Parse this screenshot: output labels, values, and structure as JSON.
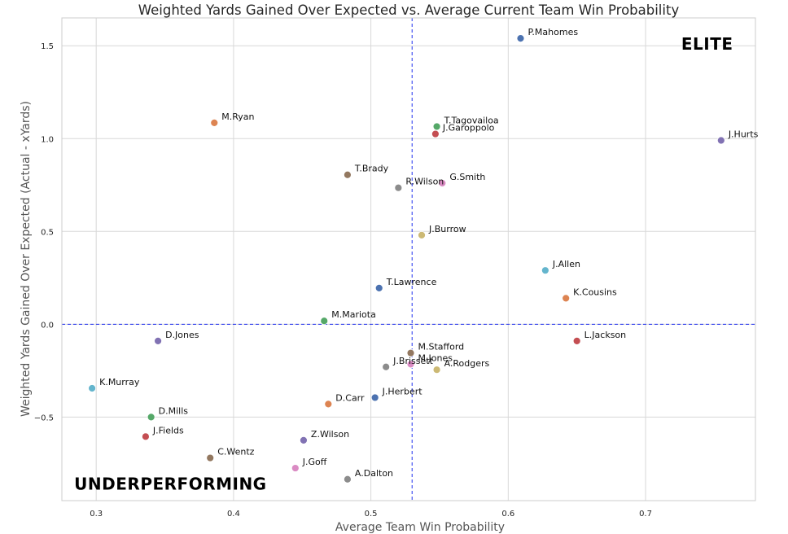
{
  "chart_data": {
    "type": "scatter",
    "title": "Weighted Yards Gained Over Expected vs. Average Current Team Win Probability",
    "xlabel": "Average Team Win Probability",
    "ylabel": "Weighted Yards Gained Over Expected (Actual - xYards)",
    "xlim": [
      0.275,
      0.78
    ],
    "ylim": [
      -0.95,
      1.65
    ],
    "xticks": [
      0.3,
      0.4,
      0.5,
      0.6,
      0.7
    ],
    "xtick_labels": [
      "0.3",
      "0.4",
      "0.5",
      "0.6",
      "0.7"
    ],
    "yticks": [
      -0.5,
      0.0,
      0.5,
      1.0,
      1.5
    ],
    "ytick_labels": [
      "−0.5",
      "0.0",
      "0.5",
      "1.0",
      "1.5"
    ],
    "grid": true,
    "reference_lines": {
      "vertical_x": 0.53,
      "horizontal_y": 0.0
    },
    "annotations": [
      {
        "text": "ELITE",
        "x": 0.726,
        "y": 1.48
      },
      {
        "text": "UNDERPERFORMING",
        "x": 0.284,
        "y": -0.89
      }
    ],
    "points": [
      {
        "label": "P.Mahomes",
        "x": 0.609,
        "y": 1.54,
        "color": "#4c72b0"
      },
      {
        "label": "J.Hurts",
        "x": 0.755,
        "y": 0.99,
        "color": "#8172b3"
      },
      {
        "label": "M.Ryan",
        "x": 0.386,
        "y": 1.085,
        "color": "#dd8452"
      },
      {
        "label": "T.Tagovailoa",
        "x": 0.548,
        "y": 1.065,
        "color": "#55a868"
      },
      {
        "label": "J.Garoppolo",
        "x": 0.547,
        "y": 1.025,
        "color": "#c44e52"
      },
      {
        "label": "T.Brady",
        "x": 0.483,
        "y": 0.805,
        "color": "#937860"
      },
      {
        "label": "G.Smith",
        "x": 0.552,
        "y": 0.76,
        "color": "#da8bc3"
      },
      {
        "label": "R.Wilson",
        "x": 0.52,
        "y": 0.735,
        "color": "#8c8c8c"
      },
      {
        "label": "J.Burrow",
        "x": 0.537,
        "y": 0.48,
        "color": "#ccb974"
      },
      {
        "label": "J.Allen",
        "x": 0.627,
        "y": 0.29,
        "color": "#64b5cd"
      },
      {
        "label": "T.Lawrence",
        "x": 0.506,
        "y": 0.195,
        "color": "#4c72b0"
      },
      {
        "label": "K.Cousins",
        "x": 0.642,
        "y": 0.14,
        "color": "#dd8452"
      },
      {
        "label": "M.Mariota",
        "x": 0.466,
        "y": 0.018,
        "color": "#55a868"
      },
      {
        "label": "D.Jones",
        "x": 0.345,
        "y": -0.09,
        "color": "#8172b3"
      },
      {
        "label": "L.Jackson",
        "x": 0.65,
        "y": -0.09,
        "color": "#c44e52"
      },
      {
        "label": "M.Stafford",
        "x": 0.529,
        "y": -0.155,
        "color": "#937860"
      },
      {
        "label": "M.Jones",
        "x": 0.529,
        "y": -0.215,
        "color": "#da8bc3"
      },
      {
        "label": "J.Brissett",
        "x": 0.511,
        "y": -0.23,
        "color": "#8c8c8c"
      },
      {
        "label": "A.Rodgers",
        "x": 0.548,
        "y": -0.245,
        "color": "#ccb974"
      },
      {
        "label": "K.Murray",
        "x": 0.297,
        "y": -0.345,
        "color": "#64b5cd"
      },
      {
        "label": "J.Herbert",
        "x": 0.503,
        "y": -0.395,
        "color": "#4c72b0"
      },
      {
        "label": "D.Carr",
        "x": 0.469,
        "y": -0.43,
        "color": "#dd8452"
      },
      {
        "label": "D.Mills",
        "x": 0.34,
        "y": -0.5,
        "color": "#55a868"
      },
      {
        "label": "J.Fields",
        "x": 0.336,
        "y": -0.605,
        "color": "#c44e52"
      },
      {
        "label": "Z.Wilson",
        "x": 0.451,
        "y": -0.625,
        "color": "#8172b3"
      },
      {
        "label": "C.Wentz",
        "x": 0.383,
        "y": -0.72,
        "color": "#937860"
      },
      {
        "label": "J.Goff",
        "x": 0.445,
        "y": -0.775,
        "color": "#da8bc3"
      },
      {
        "label": "A.Dalton",
        "x": 0.483,
        "y": -0.835,
        "color": "#8c8c8c"
      }
    ]
  }
}
